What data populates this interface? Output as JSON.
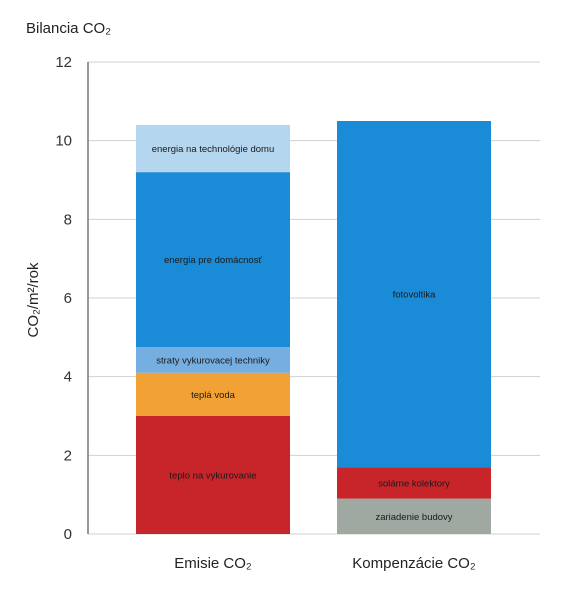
{
  "chart_data": {
    "type": "bar",
    "stacked": true,
    "title": "Bilancia CO₂",
    "ylabel": "CO₂/m²/rok",
    "ylim": [
      0,
      12
    ],
    "yticks": [
      0,
      2,
      4,
      6,
      8,
      10,
      12
    ],
    "grid": true,
    "categories": [
      "Emisie CO₂",
      "Kompenzácie CO₂"
    ],
    "stacks": [
      {
        "category": "Emisie CO₂",
        "segments": [
          {
            "label": "teplo na vykurovanie",
            "value": 3.0,
            "color": "#c8252b"
          },
          {
            "label": "teplá voda",
            "value": 1.1,
            "color": "#f2a234"
          },
          {
            "label": "straty vykurovacej techniky",
            "value": 0.65,
            "color": "#75aee0"
          },
          {
            "label": "energia pre domácnosť",
            "value": 4.45,
            "color": "#1a8bd6"
          },
          {
            "label": "energia na technológie domu",
            "value": 1.2,
            "color": "#b5d6ef"
          }
        ]
      },
      {
        "category": "Kompenzácie CO₂",
        "segments": [
          {
            "label": "zariadenie budovy",
            "value": 0.9,
            "color": "#9fa9a1"
          },
          {
            "label": "solárne kolektory",
            "value": 0.8,
            "color": "#c8252b"
          },
          {
            "label": "fotovoltika",
            "value": 8.8,
            "color": "#1a8bd6"
          }
        ]
      }
    ]
  },
  "colors": {
    "grid": "#d0d0d0",
    "axis": "#777777"
  }
}
